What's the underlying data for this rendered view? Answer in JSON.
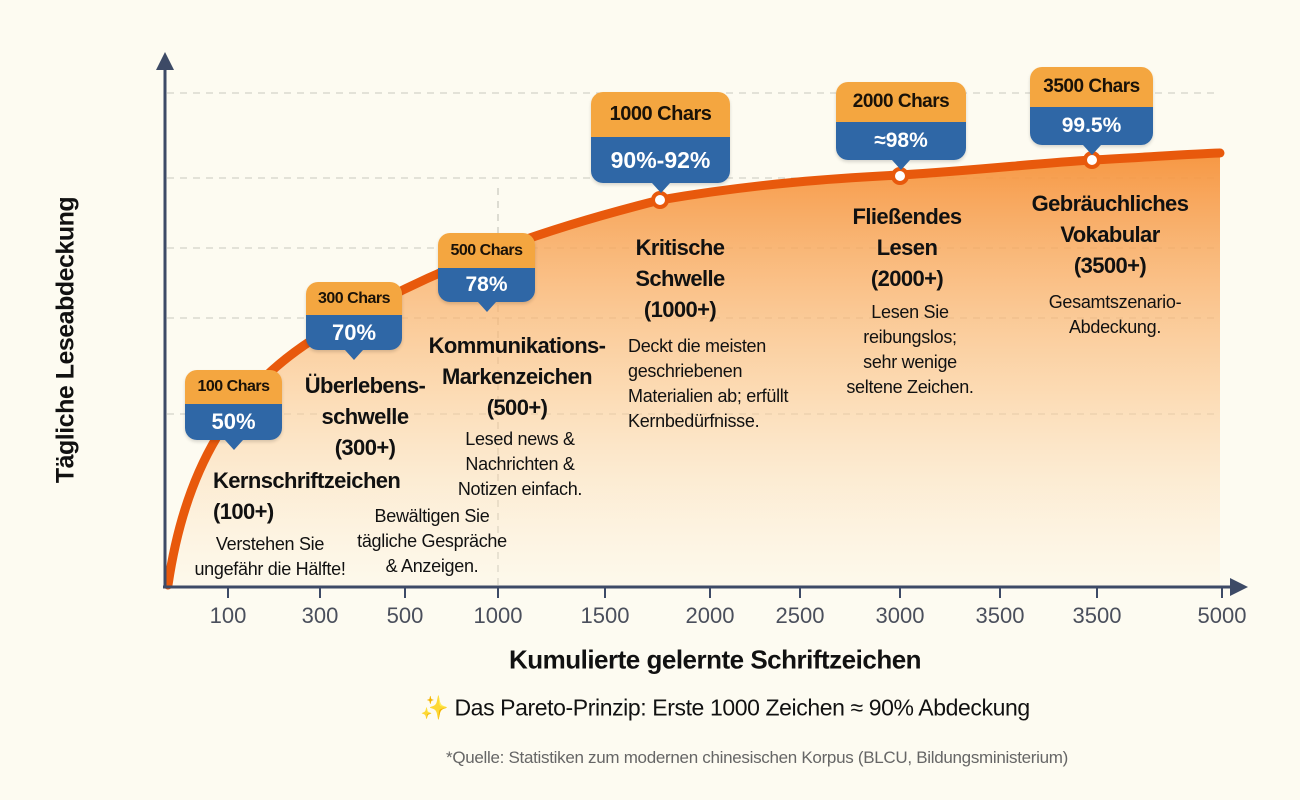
{
  "chart_data": {
    "type": "area",
    "title": "",
    "xlabel": "Kumulierte gelernte Schriftzeichen",
    "ylabel": "Tägliche Leseabdeckung",
    "x_tick_labels": [
      "100",
      "300",
      "500",
      "1000",
      "1500",
      "2000",
      "2500",
      "3000",
      "3500",
      "3500",
      "5000"
    ],
    "grid": true,
    "colors": {
      "curve": "#e8590c",
      "badge_top": "#f4a640",
      "badge_bottom": "#2f67a6",
      "axis": "#3d4a66"
    },
    "points": [
      {
        "chars": "100 Chars",
        "coverage": "50%",
        "value": 50,
        "title": [
          "Kernschriftzeichen",
          "(100+)"
        ],
        "desc": [
          "Verstehen Sie",
          "ungefähr die Hälfte!"
        ]
      },
      {
        "chars": "300 Chars",
        "coverage": "70%",
        "value": 70,
        "title": [
          "Überlebens-",
          "schwelle",
          "(300+)"
        ],
        "desc": [
          "Bewältigen Sie",
          "tägliche Gespräche",
          "& Anzeigen."
        ]
      },
      {
        "chars": "500 Chars",
        "coverage": "78%",
        "value": 78,
        "title": [
          "Kommunikations-",
          "Markenzeichen",
          "(500+)"
        ],
        "desc": [
          "Lesed news &",
          "Nachrichten &",
          "Notizen einfach."
        ]
      },
      {
        "chars": "1000 Chars",
        "coverage": "90%-92%",
        "value": 91,
        "title": [
          "Kritische",
          "Schwelle",
          "(1000+)"
        ],
        "desc": [
          "Deckt die meisten",
          "geschriebenen",
          "Materialien ab; erfüllt",
          "Kernbedürfnisse."
        ]
      },
      {
        "chars": "2000 Chars",
        "coverage": "≈98%",
        "value": 98,
        "title": [
          "Fließendes",
          "Lesen",
          "(2000+)"
        ],
        "desc": [
          "Lesen Sie",
          "reibungslos;",
          "sehr wenige",
          "seltene Zeichen."
        ]
      },
      {
        "chars": "3500 Chars",
        "coverage": "99.5%",
        "value": 99.5,
        "title": [
          "Gebräuchliches",
          "Vokabular",
          "(3500+)"
        ],
        "desc": [
          "Gesamtszenario-",
          "Abdeckung."
        ]
      }
    ]
  },
  "note": {
    "icon": "sparkles-icon",
    "text": "Das Pareto-Prinzip: Erste 1000 Zeichen ≈ 90% Abdeckung"
  },
  "source": "*Quelle: Statistiken zum modernen chinesischen Korpus (BLCU, Bildungsministerium)"
}
